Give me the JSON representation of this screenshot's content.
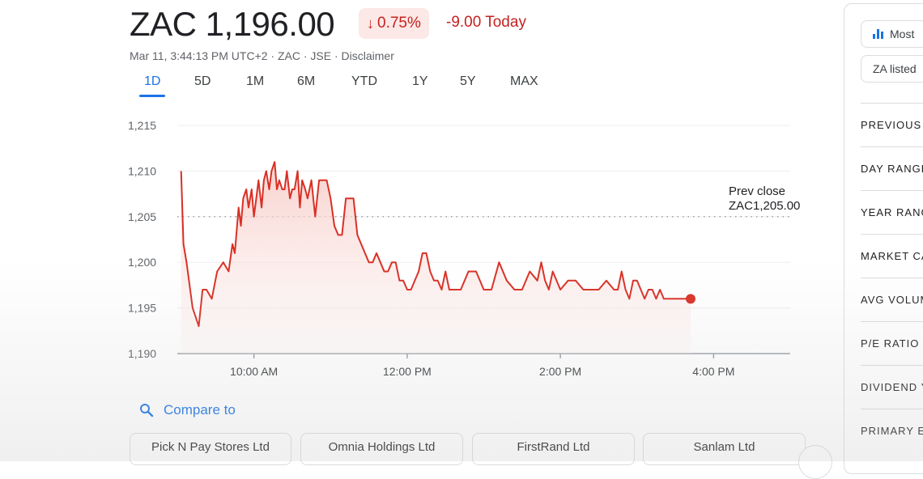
{
  "header": {
    "ticker_price": "ZAC 1,196.00",
    "change_pct": "0.75%",
    "change_today": "-9.00 Today",
    "meta": "Mar 11, 3:44:13 PM UTC+2 · ZAC · JSE · Disclaimer",
    "arrow_icon": "arrow-down-icon",
    "colors": {
      "negative": "#c5221f",
      "negative_bg": "#fce8e6",
      "accent": "#1a73e8",
      "line": "#d93025"
    }
  },
  "tabs": [
    {
      "label": "1D",
      "active": true
    },
    {
      "label": "5D"
    },
    {
      "label": "1M"
    },
    {
      "label": "6M"
    },
    {
      "label": "YTD"
    },
    {
      "label": "1Y"
    },
    {
      "label": "5Y"
    },
    {
      "label": "MAX"
    }
  ],
  "chart_data": {
    "type": "line",
    "x_unit": "hours (local time)",
    "ylim": [
      1190,
      1215
    ],
    "yticks": [
      1190,
      1195,
      1200,
      1205,
      1210,
      1215
    ],
    "ytick_labels": [
      "1,190",
      "1,195",
      "1,200",
      "1,205",
      "1,210",
      "1,215"
    ],
    "xlim": [
      9.0,
      17.0
    ],
    "xticks": [
      10,
      12,
      14,
      16
    ],
    "xtick_labels": [
      "10:00 AM",
      "12:00 PM",
      "2:00 PM",
      "4:00 PM"
    ],
    "prev_close": 1205,
    "prev_close_label": [
      "Prev close",
      "ZAC1,205.00"
    ],
    "grid": true,
    "fill_area": true,
    "series": [
      {
        "x": [
          9.05,
          9.08,
          9.12,
          9.2,
          9.28,
          9.33,
          9.38,
          9.45,
          9.52,
          9.6,
          9.67,
          9.72,
          9.75,
          9.8,
          9.83,
          9.86,
          9.9,
          9.93,
          9.97,
          10.0,
          10.03,
          10.06,
          10.1,
          10.13,
          10.16,
          10.2,
          10.23,
          10.27,
          10.3,
          10.33,
          10.37,
          10.4,
          10.43,
          10.47,
          10.5,
          10.53,
          10.57,
          10.6,
          10.63,
          10.67,
          10.7,
          10.75,
          10.8,
          10.85,
          10.9,
          10.95,
          11.0,
          11.05,
          11.1,
          11.15,
          11.2,
          11.25,
          11.3,
          11.35,
          11.4,
          11.45,
          11.5,
          11.55,
          11.6,
          11.65,
          11.7,
          11.75,
          11.8,
          11.85,
          11.9,
          11.95,
          12.0,
          12.05,
          12.1,
          12.15,
          12.2,
          12.25,
          12.3,
          12.35,
          12.4,
          12.45,
          12.5,
          12.55,
          12.6,
          12.7,
          12.8,
          12.9,
          13.0,
          13.1,
          13.2,
          13.3,
          13.4,
          13.5,
          13.6,
          13.7,
          13.75,
          13.8,
          13.85,
          13.9,
          13.95,
          14.0,
          14.1,
          14.2,
          14.3,
          14.4,
          14.5,
          14.6,
          14.7,
          14.75,
          14.8,
          14.85,
          14.9,
          14.95,
          15.0,
          15.05,
          15.1,
          15.15,
          15.2,
          15.25,
          15.3,
          15.35,
          15.4,
          15.45,
          15.5,
          15.55,
          15.6,
          15.65,
          15.7
        ],
        "y": [
          1210,
          1202,
          1200,
          1195,
          1193,
          1197,
          1197,
          1196,
          1199,
          1200,
          1199,
          1202,
          1201,
          1206,
          1204,
          1207,
          1208,
          1206,
          1208,
          1205,
          1207,
          1209,
          1206,
          1209,
          1210,
          1208,
          1210,
          1211,
          1208,
          1209,
          1208,
          1208,
          1210,
          1207,
          1208,
          1208,
          1210,
          1206,
          1209,
          1208,
          1207,
          1209,
          1205,
          1209,
          1209,
          1209,
          1207,
          1204,
          1203,
          1203,
          1207,
          1207,
          1207,
          1203,
          1202,
          1201,
          1200,
          1200,
          1201,
          1200,
          1199,
          1199,
          1200,
          1200,
          1198,
          1198,
          1197,
          1197,
          1198,
          1199,
          1201,
          1201,
          1199,
          1198,
          1198,
          1197,
          1199,
          1197,
          1197,
          1197,
          1199,
          1199,
          1197,
          1197,
          1200,
          1198,
          1197,
          1197,
          1199,
          1198,
          1200,
          1198,
          1197,
          1199,
          1198,
          1197,
          1198,
          1198,
          1197,
          1197,
          1197,
          1198,
          1197,
          1197,
          1199,
          1197,
          1196,
          1198,
          1198,
          1197,
          1196,
          1197,
          1197,
          1196,
          1197,
          1196,
          1196,
          1196,
          1196,
          1196,
          1196,
          1196,
          1196
        ]
      }
    ],
    "last_point": {
      "x": 15.7,
      "y": 1196
    }
  },
  "compare": {
    "label": "Compare to",
    "icon": "search-icon"
  },
  "peers": [
    "Pick N Pay Stores Ltd",
    "Omnia Holdings Ltd",
    "FirstRand Ltd",
    "Sanlam Ltd"
  ],
  "right_panel": {
    "pills": [
      {
        "label": "Most",
        "icon": "bar-chart-icon"
      },
      {
        "label": "ZA listed"
      }
    ],
    "rows": [
      "PREVIOUS",
      "DAY RANGE",
      "YEAR RANG",
      "MARKET CA",
      "AVG VOLUM",
      "P/E RATIO",
      "DIVIDEND Y",
      "PRIMARY E"
    ]
  }
}
